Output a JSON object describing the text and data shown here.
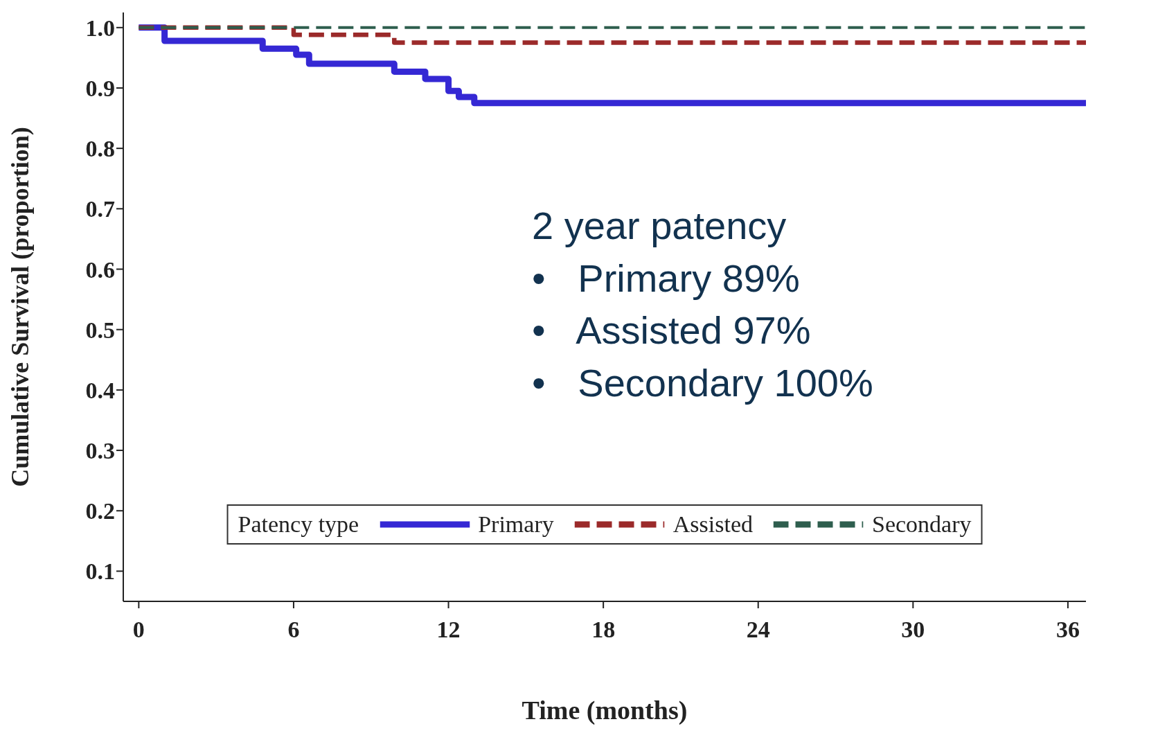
{
  "chart_data": {
    "type": "step",
    "xlabel": "Time (months)",
    "ylabel": "Cumulative Survival (proportion)",
    "legend_title": "Patency type",
    "legend": "bottom",
    "grid": false,
    "marker": "none",
    "xlim": [
      -0.6,
      36.7
    ],
    "xticks": [
      0,
      6,
      12,
      18,
      24,
      30,
      36
    ],
    "ylim": [
      0.05,
      1.025
    ],
    "yticks": [
      0.1,
      0.2,
      0.3,
      0.4,
      0.5,
      0.6,
      0.7,
      0.8,
      0.9,
      {
        "value": 1,
        "label": "1.0"
      }
    ],
    "series": [
      {
        "name": "Primary",
        "color": "#3528d4",
        "line_style": "solid",
        "x": [
          0,
          1.0,
          4.8,
          6.1,
          6.6,
          9.9,
          11.1,
          12.0,
          12.4,
          13.0,
          36.7
        ],
        "values": [
          1.0,
          0.978,
          0.965,
          0.955,
          0.94,
          0.927,
          0.915,
          0.895,
          0.885,
          0.875,
          0.875
        ]
      },
      {
        "name": "Assisted",
        "color": "#9b2a2a",
        "line_style": "dashed",
        "x": [
          0,
          6.0,
          9.9,
          36.7
        ],
        "values": [
          1.0,
          0.988,
          0.975,
          0.975
        ]
      },
      {
        "name": "Secondary",
        "color": "#2e5e4e",
        "line_style": "dashed",
        "x": [
          0,
          36.7
        ],
        "values": [
          1.0,
          1.0
        ]
      }
    ],
    "annotations": [
      "2 year patency",
      "•   Primary 89%",
      "•   Assisted 97%",
      "•   Secondary 100%"
    ]
  }
}
